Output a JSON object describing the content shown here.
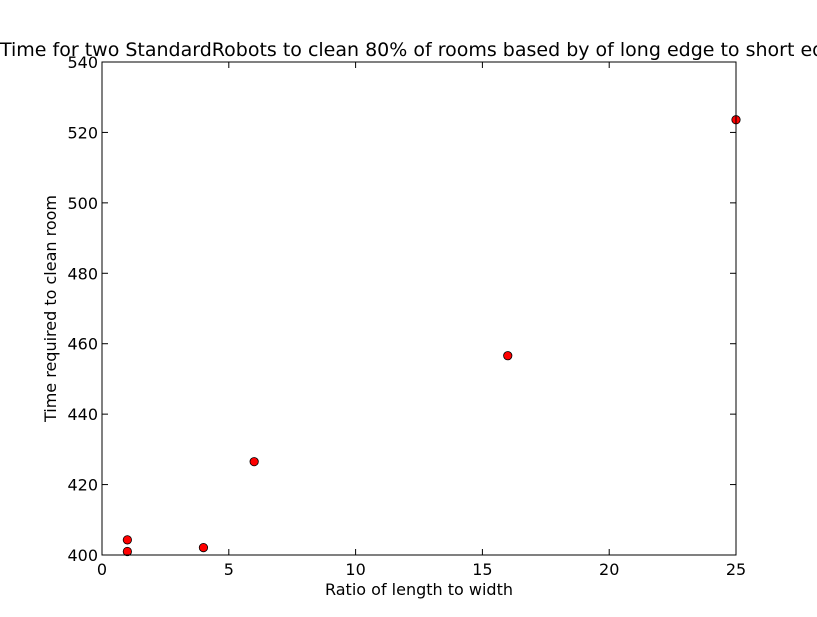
{
  "chart_data": {
    "type": "scatter",
    "title": "Time for two StandardRobots to clean 80% of rooms based by of long edge to short edge",
    "xlabel": "Ratio of length to width",
    "ylabel": "Time required to clean room",
    "xlim": [
      0,
      25
    ],
    "ylim": [
      400,
      540
    ],
    "xticks": [
      0,
      5,
      10,
      15,
      20,
      25
    ],
    "yticks": [
      400,
      420,
      440,
      460,
      480,
      500,
      520,
      540
    ],
    "grid": false,
    "legend": "none",
    "marker_color": "#ff0000",
    "marker_edge_color": "#000000",
    "points": [
      {
        "x": 1,
        "y": 404.3
      },
      {
        "x": 1,
        "y": 401.0
      },
      {
        "x": 4,
        "y": 402.1
      },
      {
        "x": 6,
        "y": 426.5
      },
      {
        "x": 16,
        "y": 456.6
      },
      {
        "x": 25,
        "y": 523.6
      }
    ]
  }
}
